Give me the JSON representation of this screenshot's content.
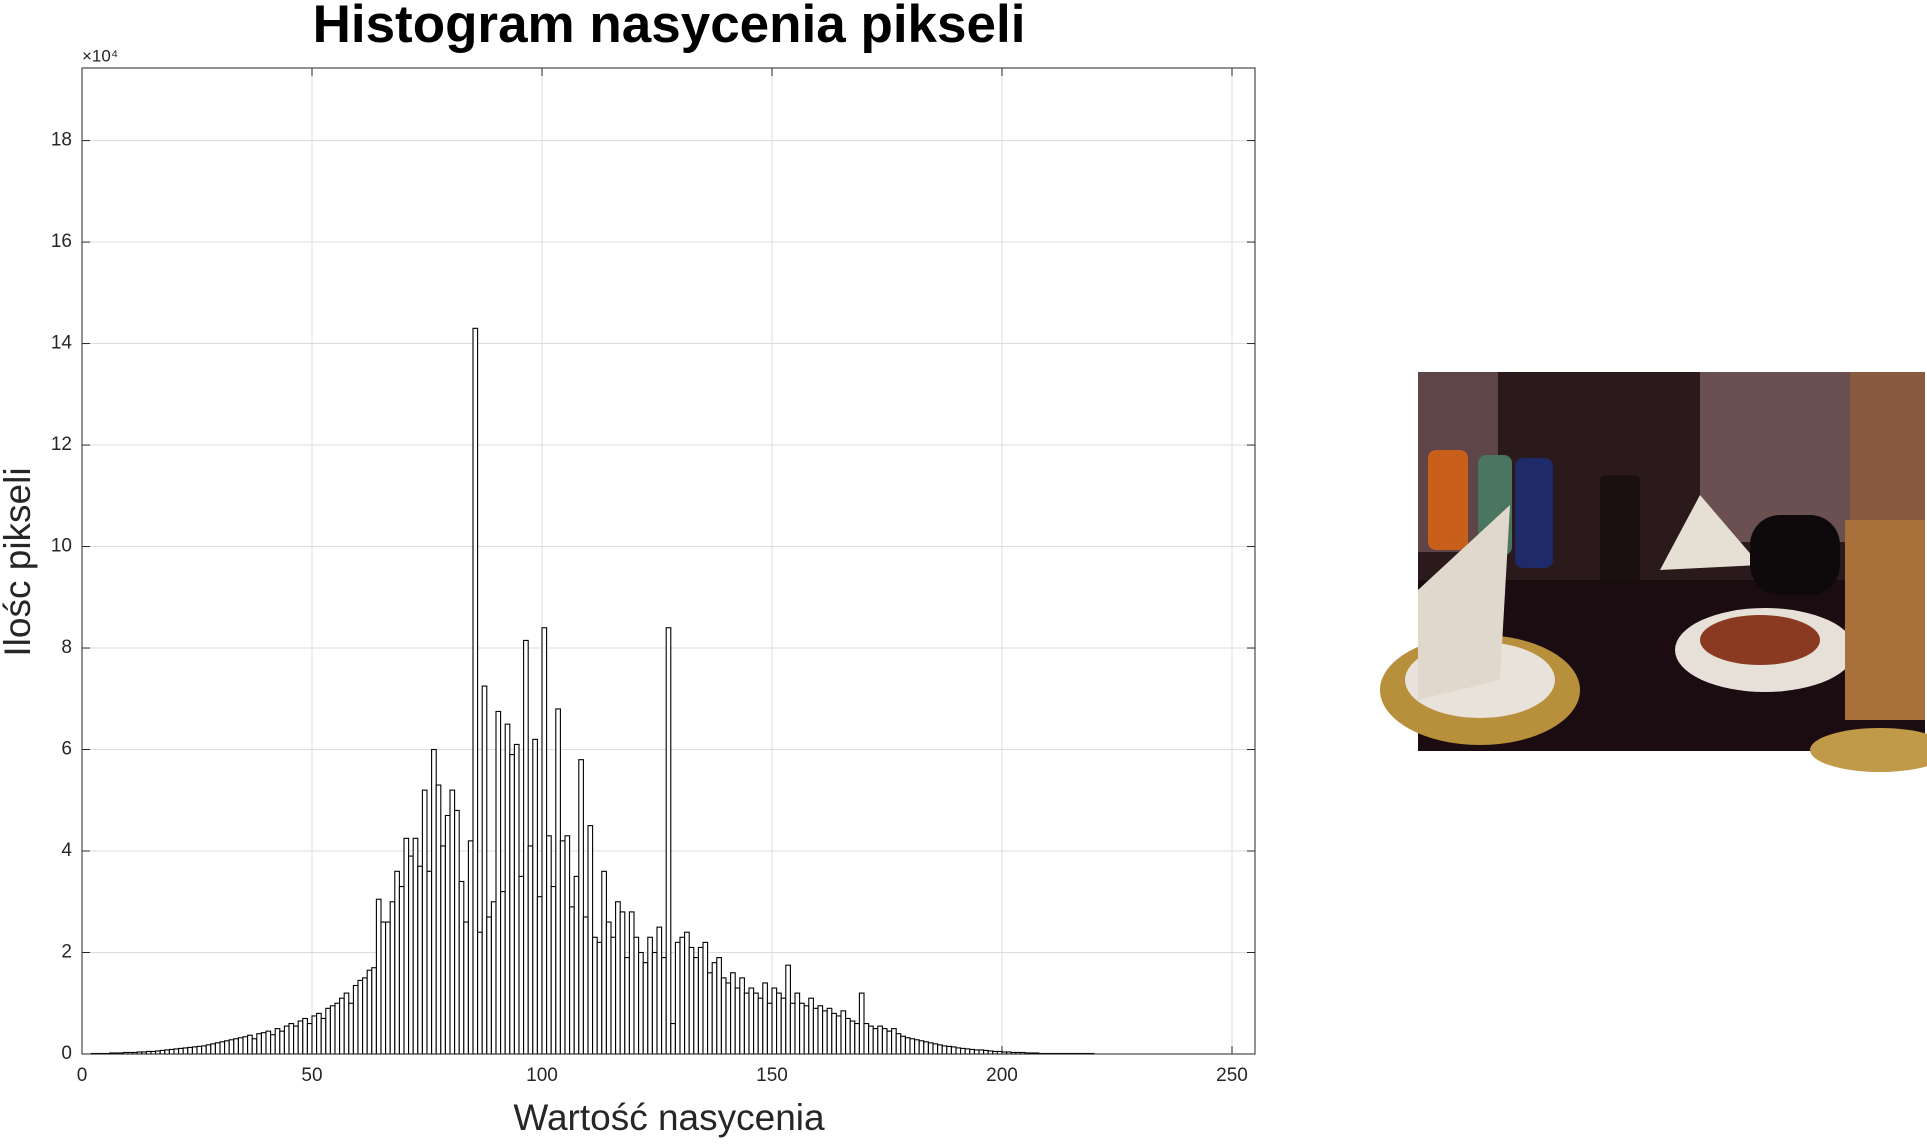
{
  "chart_data": {
    "type": "histogram",
    "title": "Histogram nasycenia pikseli",
    "x_label": "Wartość nasycenia",
    "y_label": "Ilośc pikseli",
    "y_multiplier": "×10⁴",
    "bins": [
      0,
      1,
      2,
      3,
      4,
      5,
      6,
      7,
      8,
      9,
      10,
      11,
      12,
      13,
      14,
      15,
      16,
      17,
      18,
      19,
      20,
      21,
      22,
      23,
      24,
      25,
      26,
      27,
      28,
      29,
      30,
      31,
      32,
      33,
      34,
      35,
      36,
      37,
      38,
      39,
      40,
      41,
      42,
      43,
      44,
      45,
      46,
      47,
      48,
      49,
      50,
      51,
      52,
      53,
      54,
      55,
      56,
      57,
      58,
      59,
      60,
      61,
      62,
      63,
      64,
      65,
      66,
      67,
      68,
      69,
      70,
      71,
      72,
      73,
      74,
      75,
      76,
      77,
      78,
      79,
      80,
      81,
      82,
      83,
      84,
      85,
      86,
      87,
      88,
      89,
      90,
      91,
      92,
      93,
      94,
      95,
      96,
      97,
      98,
      99,
      100,
      101,
      102,
      103,
      104,
      105,
      106,
      107,
      108,
      109,
      110,
      111,
      112,
      113,
      114,
      115,
      116,
      117,
      118,
      119,
      120,
      121,
      122,
      123,
      124,
      125,
      126,
      127,
      128,
      129,
      130,
      131,
      132,
      133,
      134,
      135,
      136,
      137,
      138,
      139,
      140,
      141,
      142,
      143,
      144,
      145,
      146,
      147,
      148,
      149,
      150,
      151,
      152,
      153,
      154,
      155,
      156,
      157,
      158,
      159,
      160,
      161,
      162,
      163,
      164,
      165,
      166,
      167,
      168,
      169,
      170,
      171,
      172,
      173,
      174,
      175,
      176,
      177,
      178,
      179,
      180,
      181,
      182,
      183,
      184,
      185,
      186,
      187,
      188,
      189,
      190,
      191,
      192,
      193,
      194,
      195,
      196,
      197,
      198,
      199,
      200,
      201,
      202,
      203,
      204,
      205,
      206,
      207,
      208,
      209,
      210,
      211,
      212,
      213,
      214,
      215,
      216,
      217,
      218,
      219,
      220,
      221,
      222,
      223,
      224,
      225,
      226,
      227,
      228,
      229,
      230,
      231,
      232,
      233,
      234,
      235,
      236,
      237,
      238,
      239,
      240,
      241,
      242,
      243,
      244,
      245,
      246,
      247,
      248,
      249,
      250,
      251,
      252,
      253,
      254,
      255
    ],
    "values": [
      0,
      0,
      0.01,
      0.01,
      0.01,
      0.01,
      0.02,
      0.02,
      0.02,
      0.03,
      0.03,
      0.03,
      0.04,
      0.04,
      0.05,
      0.05,
      0.06,
      0.07,
      0.08,
      0.09,
      0.1,
      0.11,
      0.12,
      0.13,
      0.14,
      0.15,
      0.16,
      0.18,
      0.2,
      0.22,
      0.24,
      0.26,
      0.28,
      0.3,
      0.32,
      0.34,
      0.37,
      0.3,
      0.4,
      0.42,
      0.45,
      0.38,
      0.5,
      0.45,
      0.55,
      0.6,
      0.55,
      0.65,
      0.7,
      0.6,
      0.75,
      0.8,
      0.7,
      0.9,
      0.95,
      1.0,
      1.1,
      1.2,
      1.0,
      1.35,
      1.45,
      1.5,
      1.65,
      1.7,
      3.05,
      2.6,
      2.6,
      3.0,
      3.6,
      3.3,
      4.25,
      3.9,
      4.25,
      3.7,
      5.2,
      3.6,
      6.0,
      5.3,
      4.1,
      4.7,
      5.2,
      4.8,
      3.4,
      2.6,
      4.2,
      14.3,
      2.4,
      7.25,
      2.7,
      3.0,
      6.75,
      3.2,
      6.5,
      5.9,
      6.1,
      3.5,
      8.15,
      4.1,
      6.2,
      3.1,
      8.4,
      4.3,
      3.3,
      6.8,
      4.2,
      4.3,
      2.9,
      3.5,
      5.8,
      2.7,
      4.5,
      2.3,
      2.2,
      3.6,
      2.6,
      2.3,
      3.0,
      2.8,
      1.9,
      2.8,
      2.3,
      2.0,
      1.8,
      2.3,
      2.0,
      2.5,
      1.9,
      8.4,
      0.6,
      2.2,
      2.3,
      2.4,
      2.1,
      1.9,
      2.1,
      2.2,
      1.6,
      1.8,
      1.9,
      1.5,
      1.4,
      1.6,
      1.3,
      1.5,
      1.2,
      1.3,
      1.2,
      1.1,
      1.4,
      1.0,
      1.3,
      1.2,
      1.1,
      1.75,
      1.0,
      1.2,
      1.0,
      0.95,
      1.1,
      0.9,
      0.95,
      0.85,
      0.9,
      0.8,
      0.75,
      0.85,
      0.7,
      0.65,
      0.6,
      1.2,
      0.6,
      0.55,
      0.5,
      0.55,
      0.5,
      0.45,
      0.5,
      0.4,
      0.35,
      0.32,
      0.3,
      0.28,
      0.26,
      0.24,
      0.22,
      0.2,
      0.18,
      0.16,
      0.15,
      0.14,
      0.12,
      0.11,
      0.1,
      0.09,
      0.08,
      0.08,
      0.07,
      0.06,
      0.05,
      0.05,
      0.04,
      0.04,
      0.03,
      0.03,
      0.03,
      0.02,
      0.02,
      0.02,
      0.01,
      0.01,
      0.01,
      0.01,
      0.01,
      0.01,
      0.01,
      0.01,
      0.01,
      0.01,
      0.01,
      0.01,
      0,
      0,
      0,
      0,
      0,
      0,
      0,
      0,
      0,
      0,
      0,
      0,
      0,
      0,
      0,
      0,
      0,
      0,
      0,
      0,
      0,
      0,
      0,
      0,
      0,
      0,
      0,
      0,
      0,
      0,
      0,
      0,
      0,
      0,
      0
    ],
    "color": "#ffffff",
    "edge_color": "#000000",
    "xlim": [
      0,
      255
    ],
    "xticks": [
      0,
      50,
      100,
      150,
      200,
      250
    ],
    "ylim": [
      0,
      19.43
    ],
    "yticks": [
      0,
      2,
      4,
      6,
      8,
      10,
      12,
      14,
      16,
      18
    ],
    "grid": true
  }
}
